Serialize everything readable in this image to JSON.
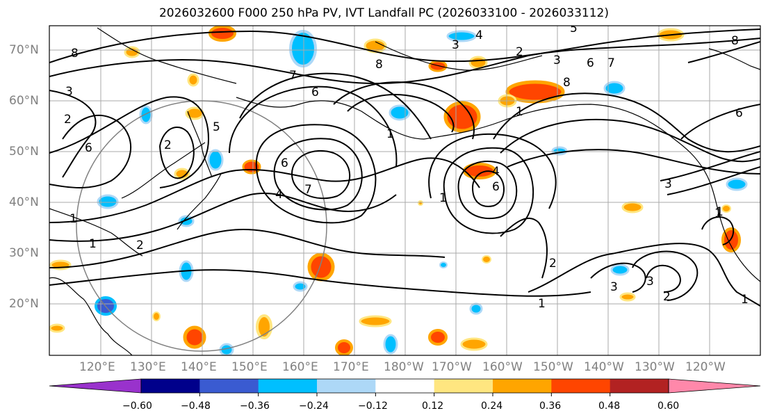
{
  "title": "2026032600 F000 250 hPa PV, IVT Landfall PC (2026033100 - 2026033112)",
  "lat_labels": [
    "70°N",
    "60°N",
    "50°N",
    "40°N",
    "30°N",
    "20°N"
  ],
  "lon_labels": [
    "120°E",
    "130°E",
    "140°E",
    "150°E",
    "160°E",
    "170°E",
    "180°W",
    "170°W",
    "160°W",
    "150°W",
    "140°W",
    "130°W",
    "120°W"
  ],
  "colorbar": {
    "colors": [
      "#9932cc",
      "#00008b",
      "#3a5bd1",
      "#00bfff",
      "#add8f7",
      "#ffffff",
      "#ffe680",
      "#ffa500",
      "#ff4500",
      "#b22222",
      "#ff88aa"
    ],
    "tick_labels": [
      "−0.60",
      "−0.48",
      "−0.36",
      "−0.24",
      "−0.12",
      "0.12",
      "0.24",
      "0.36",
      "0.48",
      "0.60"
    ]
  },
  "pv_contour_labels": [
    "8",
    "3",
    "2",
    "6",
    "1",
    "7",
    "4",
    "5",
    "2",
    "8",
    "6",
    "7",
    "1",
    "4",
    "6",
    "3",
    "1",
    "2",
    "1",
    "3",
    "3",
    "2",
    "1",
    "1",
    "6",
    "7",
    "5",
    "4",
    "3",
    "2",
    "1",
    "3",
    "8",
    "6",
    "8",
    "1",
    "2",
    "6",
    "1"
  ]
}
